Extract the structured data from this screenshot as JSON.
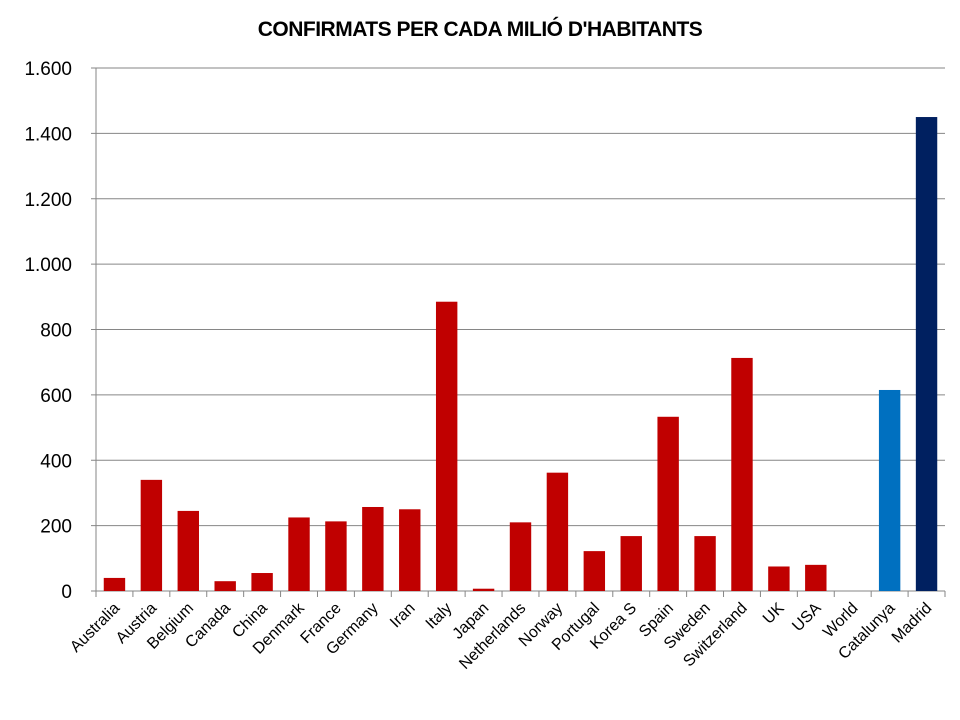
{
  "chart_data": {
    "type": "bar",
    "title": "CONFIRMATS PER CADA MILIÓ D'HABITANTS",
    "xlabel": "",
    "ylabel": "",
    "ylim": [
      0,
      1600
    ],
    "yticks": [
      0,
      200,
      400,
      600,
      800,
      1000,
      1200,
      1400,
      1600
    ],
    "ytick_labels": [
      "0",
      "200",
      "400",
      "600",
      "800",
      "1.000",
      "1.200",
      "1.400",
      "1.600"
    ],
    "grid": true,
    "categories": [
      "Australia",
      "Austria",
      "Belgium",
      "Canada",
      "China",
      "Denmark",
      "France",
      "Germany",
      "Iran",
      "Italy",
      "Japan",
      "Netherlands",
      "Norway",
      "Portugal",
      "Korea S",
      "Spain",
      "Sweden",
      "Switzerland",
      "UK",
      "USA",
      "World",
      "Catalunya",
      "Madrid"
    ],
    "values": [
      40,
      340,
      245,
      30,
      55,
      225,
      213,
      257,
      250,
      885,
      7,
      210,
      362,
      122,
      168,
      533,
      168,
      713,
      75,
      80,
      0,
      615,
      1450
    ],
    "colors": [
      "#C00000",
      "#C00000",
      "#C00000",
      "#C00000",
      "#C00000",
      "#C00000",
      "#C00000",
      "#C00000",
      "#C00000",
      "#C00000",
      "#C00000",
      "#C00000",
      "#C00000",
      "#C00000",
      "#C00000",
      "#C00000",
      "#C00000",
      "#C00000",
      "#C00000",
      "#C00000",
      "#C00000",
      "#0070C0",
      "#002060"
    ]
  }
}
